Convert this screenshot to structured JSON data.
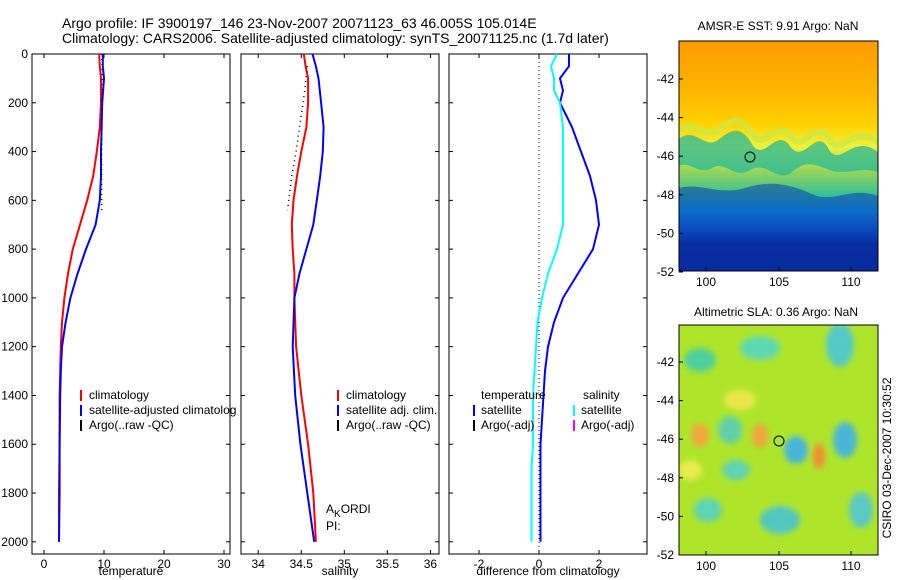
{
  "header": {
    "line1": "Argo profile: IF 3900197_146 23-Nov-2007 20071123_63 46.005S 105.014E",
    "line2": "Climatology: CARS2006. Satellite-adjusted climatology: synTS_20071125.nc (1.7d later)"
  },
  "side_label": "CSIRO 03-Dec-2007 10:30:52",
  "colors": {
    "red": "#ff0000",
    "blue": "#0000ff",
    "black": "#000000",
    "cyan": "#00ffff",
    "magenta": "#ff00ff"
  },
  "chart_data": [
    {
      "id": "temperature_panel",
      "type": "line",
      "xlabel": "temperature",
      "xlim": [
        -2,
        31
      ],
      "ylim": [
        2050,
        0
      ],
      "xticks": [
        0,
        10,
        20,
        30
      ],
      "yticks": [
        0,
        200,
        400,
        600,
        800,
        1000,
        1200,
        1400,
        1600,
        1800,
        2000
      ],
      "legend": [
        "climatology",
        "satellite-adjusted climatolog",
        "Argo(..raw -QC)"
      ],
      "series": [
        {
          "name": "climatology",
          "color": "red",
          "style": "solid",
          "x": [
            9.2,
            9.3,
            9.5,
            9.5,
            9.3,
            8.8,
            8.2,
            7.2,
            6.0,
            4.8,
            4.0,
            3.4,
            3.0,
            2.8,
            2.7,
            2.6,
            2.6,
            2.5,
            2.5
          ],
          "y": [
            0,
            50,
            100,
            200,
            300,
            400,
            500,
            600,
            700,
            800,
            900,
            1000,
            1100,
            1200,
            1300,
            1400,
            1600,
            1800,
            2000
          ]
        },
        {
          "name": "satellite-adjusted climatolog",
          "color": "blue",
          "style": "solid",
          "x": [
            9.8,
            9.8,
            10.0,
            9.7,
            9.6,
            9.5,
            9.5,
            9.3,
            8.6,
            7.0,
            5.6,
            4.4,
            3.6,
            3.0,
            2.8,
            2.7,
            2.6,
            2.6,
            2.5
          ],
          "y": [
            0,
            50,
            100,
            200,
            300,
            400,
            500,
            600,
            700,
            800,
            900,
            1000,
            1100,
            1200,
            1300,
            1400,
            1600,
            1800,
            2000
          ]
        },
        {
          "name": "Argo(..raw -QC)",
          "color": "black",
          "style": "dotted",
          "x": [
            9.6,
            9.7,
            9.7,
            9.6,
            9.6,
            9.6,
            9.6,
            9.6
          ],
          "y": [
            0,
            50,
            100,
            200,
            300,
            400,
            500,
            640
          ]
        }
      ]
    },
    {
      "id": "salinity_panel",
      "type": "line",
      "xlabel": "salinity",
      "xlim": [
        33.8,
        36.1
      ],
      "ylim": [
        2050,
        0
      ],
      "xticks": [
        34,
        34.5,
        35,
        35.5,
        36
      ],
      "yticks": [
        0,
        200,
        400,
        600,
        800,
        1000,
        1200,
        1400,
        1600,
        1800,
        2000
      ],
      "legend": [
        "climatology",
        "satellite adj. clim.",
        "Argo(..raw -QC)"
      ],
      "annotation": {
        "main": "A",
        "sub": "K",
        "rest": "ORDI",
        "line2": "PI:"
      },
      "series": [
        {
          "name": "climatology",
          "color": "red",
          "style": "solid",
          "x": [
            34.53,
            34.55,
            34.58,
            34.58,
            34.56,
            34.5,
            34.45,
            34.41,
            34.39,
            34.4,
            34.42,
            34.42,
            34.44,
            34.5,
            34.58,
            34.64,
            34.67
          ],
          "y": [
            0,
            50,
            100,
            200,
            300,
            400,
            500,
            600,
            700,
            800,
            900,
            1000,
            1200,
            1400,
            1600,
            1800,
            2000
          ]
        },
        {
          "name": "satellite adj. clim.",
          "color": "blue",
          "style": "solid",
          "x": [
            34.63,
            34.67,
            34.7,
            34.73,
            34.76,
            34.75,
            34.72,
            34.68,
            34.64,
            34.56,
            34.48,
            34.42,
            34.4,
            34.43,
            34.49,
            34.57,
            34.65
          ],
          "y": [
            0,
            50,
            100,
            200,
            300,
            400,
            500,
            600,
            700,
            800,
            900,
            1000,
            1200,
            1400,
            1600,
            1800,
            2000
          ]
        },
        {
          "name": "Argo(..raw -QC)",
          "color": "black",
          "style": "dotted",
          "x": [
            34.57,
            34.54,
            34.5,
            34.44,
            34.39,
            34.34
          ],
          "y": [
            50,
            150,
            250,
            400,
            500,
            640
          ]
        }
      ]
    },
    {
      "id": "difference_panel",
      "type": "line",
      "xlabel": "difference from climatology",
      "xlim": [
        -3.0,
        3.6
      ],
      "ylim": [
        2050,
        0
      ],
      "xticks": [
        -2,
        0,
        2
      ],
      "yticks": [
        0,
        200,
        400,
        600,
        800,
        1000,
        1200,
        1400,
        1600,
        1800,
        2000
      ],
      "legend_left_title": "temperature",
      "legend_left": [
        "satellite",
        "Argo(-adj)"
      ],
      "legend_right_title": "salinity",
      "legend_right": [
        "satellite",
        "Argo(-adj)"
      ],
      "series": [
        {
          "name": "satellite",
          "variable": "temperature",
          "color": "blue",
          "style": "solid",
          "x": [
            1.0,
            1.0,
            0.7,
            0.8,
            0.7,
            1.1,
            1.4,
            1.7,
            1.9,
            2.0,
            1.8,
            1.3,
            0.8,
            0.5,
            0.3,
            0.2,
            0.15,
            0.1,
            0.05,
            0.05,
            0.05,
            0.05,
            0.05
          ],
          "y": [
            0,
            50,
            100,
            150,
            200,
            300,
            400,
            500,
            600,
            700,
            800,
            900,
            1000,
            1100,
            1200,
            1300,
            1400,
            1500,
            1600,
            1700,
            1800,
            1900,
            2000
          ]
        },
        {
          "name": "satellite",
          "variable": "salinity",
          "color": "cyan",
          "style": "solid",
          "x": [
            0.6,
            0.4,
            0.5,
            0.5,
            0.7,
            0.8,
            0.8,
            0.8,
            0.8,
            0.8,
            0.6,
            0.3,
            0.1,
            -0.05,
            -0.1,
            -0.15,
            -0.2,
            -0.2,
            -0.2,
            -0.25,
            -0.25,
            -0.25
          ],
          "y": [
            0,
            50,
            100,
            150,
            200,
            300,
            400,
            500,
            600,
            700,
            800,
            900,
            1000,
            1100,
            1200,
            1300,
            1400,
            1500,
            1600,
            1700,
            1800,
            2000
          ]
        }
      ]
    }
  ],
  "maps": [
    {
      "title": "AMSR-E SST: 9.91 Argo: NaN",
      "xticks": [
        "100",
        "105",
        "110"
      ],
      "yticks": [
        "-42",
        "-44",
        "-46",
        "-48",
        "-50",
        "-52"
      ]
    },
    {
      "title": "Altimetric SLA: 0.36 Argo: NaN",
      "xticks": [
        "100",
        "105",
        "110"
      ],
      "yticks": [
        "-42",
        "-44",
        "-46",
        "-48",
        "-50",
        "-52"
      ]
    }
  ]
}
